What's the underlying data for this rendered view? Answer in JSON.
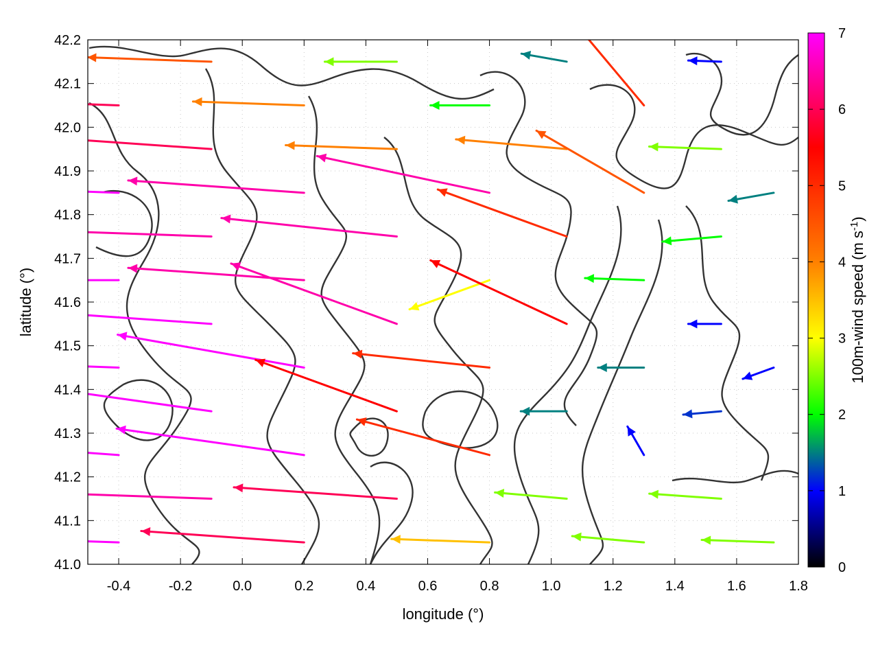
{
  "chart_data": {
    "type": "quiver",
    "xlabel": "longitude (°)",
    "ylabel": "latitude (°)",
    "colorbar_label": "100m-wind speed (m s",
    "colorbar_label_sup": "-1",
    "colorbar_label_end": ")",
    "xlim": [
      -0.5,
      1.8
    ],
    "ylim": [
      41.0,
      42.2
    ],
    "clim": [
      0,
      7
    ],
    "x_ticks": [
      -0.4,
      -0.2,
      0.0,
      0.2,
      0.4,
      0.6,
      0.8,
      1.0,
      1.2,
      1.4,
      1.6,
      1.8
    ],
    "x_tick_labels": [
      "-0.4",
      "-0.2",
      "0.0",
      "0.2",
      "0.4",
      "0.6",
      "0.8",
      "1.0",
      "1.2",
      "1.4",
      "1.6",
      "1.8"
    ],
    "y_ticks": [
      41.0,
      41.1,
      41.2,
      41.3,
      41.4,
      41.5,
      41.6,
      41.7,
      41.8,
      41.9,
      42.0,
      42.1,
      42.2
    ],
    "y_tick_labels": [
      "41.0",
      "41.1",
      "41.2",
      "41.3",
      "41.4",
      "41.5",
      "41.6",
      "41.7",
      "41.8",
      "41.9",
      "42.0",
      "42.1",
      "42.2"
    ],
    "colorbar_ticks": [
      0,
      1,
      2,
      3,
      4,
      5,
      6,
      7
    ],
    "colorbar_tick_labels": [
      "0",
      "1",
      "2",
      "3",
      "4",
      "5",
      "6",
      "7"
    ],
    "colormap": [
      "#000000",
      "#0000ff",
      "#00ff00",
      "#ffff00",
      "#ff8000",
      "#ff0000",
      "#ff00ff"
    ],
    "colormap_stops": [
      0,
      1,
      2,
      3,
      4,
      5.5,
      7
    ],
    "contour_color": "#333333",
    "grid": "dotted",
    "vectors": [
      {
        "lon": -0.4,
        "lat": 41.05,
        "speed": 7.0,
        "dir_deg": 178
      },
      {
        "lon": -0.4,
        "lat": 41.25,
        "speed": 7.0,
        "dir_deg": 176
      },
      {
        "lon": -0.4,
        "lat": 41.45,
        "speed": 7.0,
        "dir_deg": 178
      },
      {
        "lon": -0.4,
        "lat": 41.65,
        "speed": 7.0,
        "dir_deg": 180
      },
      {
        "lon": -0.4,
        "lat": 41.85,
        "speed": 7.0,
        "dir_deg": 178
      },
      {
        "lon": -0.4,
        "lat": 42.05,
        "speed": 6.0,
        "dir_deg": 178
      },
      {
        "lon": -0.1,
        "lat": 41.15,
        "speed": 6.5,
        "dir_deg": 178
      },
      {
        "lon": -0.1,
        "lat": 41.35,
        "speed": 7.0,
        "dir_deg": 172
      },
      {
        "lon": -0.1,
        "lat": 41.55,
        "speed": 7.0,
        "dir_deg": 176
      },
      {
        "lon": -0.1,
        "lat": 41.75,
        "speed": 6.5,
        "dir_deg": 178
      },
      {
        "lon": -0.1,
        "lat": 41.95,
        "speed": 6.0,
        "dir_deg": 176
      },
      {
        "lon": -0.1,
        "lat": 42.15,
        "speed": 4.5,
        "dir_deg": 178
      },
      {
        "lon": 0.2,
        "lat": 41.05,
        "speed": 6.0,
        "dir_deg": 176
      },
      {
        "lon": 0.2,
        "lat": 41.25,
        "speed": 7.0,
        "dir_deg": 172
      },
      {
        "lon": 0.2,
        "lat": 41.45,
        "speed": 7.0,
        "dir_deg": 170
      },
      {
        "lon": 0.2,
        "lat": 41.65,
        "speed": 6.5,
        "dir_deg": 176
      },
      {
        "lon": 0.2,
        "lat": 41.85,
        "speed": 6.5,
        "dir_deg": 176
      },
      {
        "lon": 0.2,
        "lat": 42.05,
        "speed": 4.0,
        "dir_deg": 178
      },
      {
        "lon": 0.5,
        "lat": 41.15,
        "speed": 6.0,
        "dir_deg": 176
      },
      {
        "lon": 0.5,
        "lat": 41.35,
        "speed": 5.5,
        "dir_deg": 160
      },
      {
        "lon": 0.5,
        "lat": 41.55,
        "speed": 6.5,
        "dir_deg": 160
      },
      {
        "lon": 0.5,
        "lat": 41.75,
        "speed": 6.5,
        "dir_deg": 174
      },
      {
        "lon": 0.5,
        "lat": 41.95,
        "speed": 4.0,
        "dir_deg": 178
      },
      {
        "lon": 0.5,
        "lat": 42.15,
        "speed": 2.5,
        "dir_deg": 180
      },
      {
        "lon": 0.8,
        "lat": 41.05,
        "speed": 3.5,
        "dir_deg": 178
      },
      {
        "lon": 0.8,
        "lat": 41.25,
        "speed": 5.0,
        "dir_deg": 165
      },
      {
        "lon": 0.8,
        "lat": 41.45,
        "speed": 5.0,
        "dir_deg": 174
      },
      {
        "lon": 0.8,
        "lat": 41.65,
        "speed": 3.0,
        "dir_deg": 200
      },
      {
        "lon": 0.8,
        "lat": 41.85,
        "speed": 6.5,
        "dir_deg": 168
      },
      {
        "lon": 0.8,
        "lat": 42.05,
        "speed": 2.0,
        "dir_deg": 180
      },
      {
        "lon": 1.05,
        "lat": 41.15,
        "speed": 2.5,
        "dir_deg": 175
      },
      {
        "lon": 1.05,
        "lat": 41.35,
        "speed": 1.5,
        "dir_deg": 180
      },
      {
        "lon": 1.05,
        "lat": 41.55,
        "speed": 5.5,
        "dir_deg": 155
      },
      {
        "lon": 1.05,
        "lat": 41.75,
        "speed": 5.0,
        "dir_deg": 160
      },
      {
        "lon": 1.05,
        "lat": 41.95,
        "speed": 4.0,
        "dir_deg": 175
      },
      {
        "lon": 1.05,
        "lat": 42.15,
        "speed": 1.5,
        "dir_deg": 170
      },
      {
        "lon": 1.3,
        "lat": 41.05,
        "speed": 2.5,
        "dir_deg": 175
      },
      {
        "lon": 1.3,
        "lat": 41.25,
        "speed": 1.0,
        "dir_deg": 120
      },
      {
        "lon": 1.3,
        "lat": 41.45,
        "speed": 1.5,
        "dir_deg": 180
      },
      {
        "lon": 1.3,
        "lat": 41.65,
        "speed": 2.0,
        "dir_deg": 178
      },
      {
        "lon": 1.3,
        "lat": 41.85,
        "speed": 4.5,
        "dir_deg": 150
      },
      {
        "lon": 1.3,
        "lat": 42.05,
        "speed": 5.0,
        "dir_deg": 130
      },
      {
        "lon": 1.55,
        "lat": 41.15,
        "speed": 2.5,
        "dir_deg": 176
      },
      {
        "lon": 1.55,
        "lat": 41.35,
        "speed": 1.2,
        "dir_deg": 185
      },
      {
        "lon": 1.55,
        "lat": 41.55,
        "speed": 1.0,
        "dir_deg": 180
      },
      {
        "lon": 1.55,
        "lat": 41.75,
        "speed": 2.0,
        "dir_deg": 185
      },
      {
        "lon": 1.55,
        "lat": 41.95,
        "speed": 2.5,
        "dir_deg": 178
      },
      {
        "lon": 1.55,
        "lat": 42.15,
        "speed": 1.0,
        "dir_deg": 178
      },
      {
        "lon": 1.72,
        "lat": 41.05,
        "speed": 2.5,
        "dir_deg": 178
      },
      {
        "lon": 1.72,
        "lat": 41.45,
        "speed": 1.0,
        "dir_deg": 200
      },
      {
        "lon": 1.72,
        "lat": 41.85,
        "speed": 1.5,
        "dir_deg": 190
      }
    ]
  }
}
